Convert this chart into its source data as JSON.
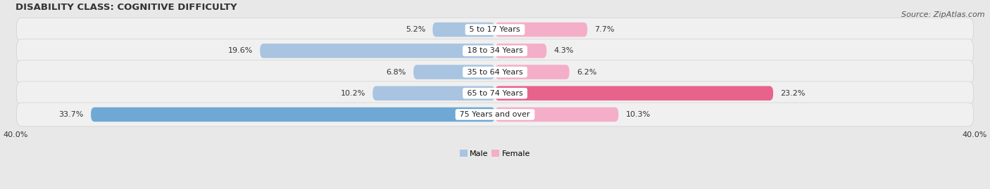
{
  "title": "DISABILITY CLASS: COGNITIVE DIFFICULTY",
  "source": "Source: ZipAtlas.com",
  "categories": [
    "5 to 17 Years",
    "18 to 34 Years",
    "35 to 64 Years",
    "65 to 74 Years",
    "75 Years and over"
  ],
  "male_values": [
    5.2,
    19.6,
    6.8,
    10.2,
    33.7
  ],
  "female_values": [
    7.7,
    4.3,
    6.2,
    23.2,
    10.3
  ],
  "male_color": "#a8c4e0",
  "female_color_normal": "#f4aec8",
  "female_color_highlight": "#e8638c",
  "female_highlight_row": 3,
  "male_color_highlight": "#6fa8d4",
  "male_highlight_row": 4,
  "x_max": 40.0,
  "x_min": -40.0,
  "background_color": "#e8e8e8",
  "row_bg_color": "#f0f0f0",
  "row_bg_color_dark": "#e0e0e0",
  "title_fontsize": 9.5,
  "source_fontsize": 8,
  "label_fontsize": 8,
  "tick_fontsize": 8
}
